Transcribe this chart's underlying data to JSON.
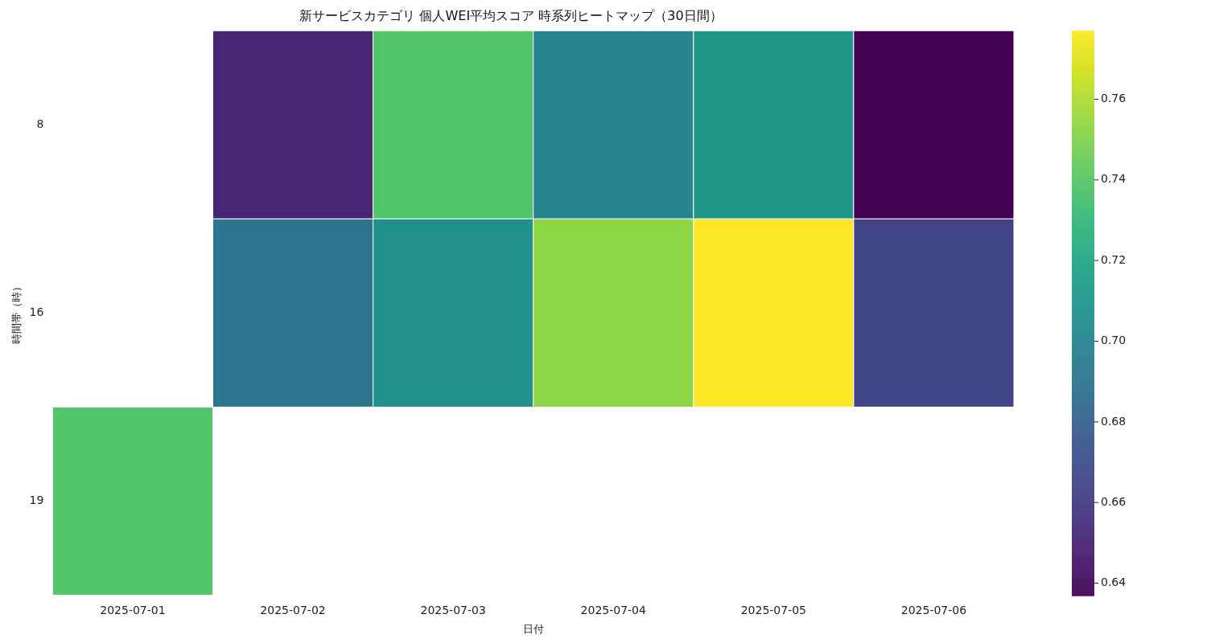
{
  "chart_data": {
    "type": "heatmap",
    "title": "新サービスカテゴリ 個人WEI平均スコア 時系列ヒートマップ（30日間）",
    "xlabel": "日付",
    "ylabel": "時間帯（時）",
    "categories": [
      "2025-07-01",
      "2025-07-02",
      "2025-07-03",
      "2025-07-04",
      "2025-07-05",
      "2025-07-06"
    ],
    "y_categories": [
      "8",
      "16",
      "19"
    ],
    "cells": [
      [
        null,
        0.651,
        0.739,
        0.7,
        0.711,
        0.637
      ],
      [
        null,
        0.692,
        0.707,
        0.753,
        0.777,
        0.665
      ],
      [
        0.739,
        null,
        null,
        null,
        null,
        null
      ]
    ],
    "clim": [
      0.637,
      0.777
    ],
    "cticks": [
      0.64,
      0.66,
      0.68,
      {
        "value": 0.7,
        "label": "0.70"
      },
      0.72,
      0.74,
      0.76
    ],
    "grid": false,
    "legend": false
  }
}
